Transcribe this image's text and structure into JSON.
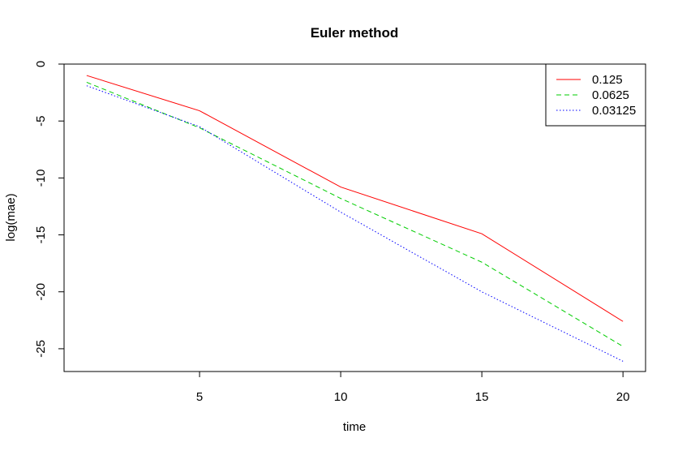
{
  "chart_data": {
    "type": "line",
    "title": "Euler method",
    "xlabel": "time",
    "ylabel": "log(mae)",
    "xlim": [
      0.2,
      20.8
    ],
    "ylim": [
      -27,
      0
    ],
    "x_ticks": [
      5,
      10,
      15,
      20
    ],
    "y_ticks": [
      0,
      -5,
      -10,
      -15,
      -20,
      -25
    ],
    "x": [
      1,
      5,
      10,
      15,
      20
    ],
    "grid": false,
    "legend_position": "top-right",
    "series": [
      {
        "name": "0.125",
        "color": "#ff0000",
        "dash": "solid",
        "values": [
          -1.0,
          -4.1,
          -10.8,
          -14.9,
          -22.6
        ]
      },
      {
        "name": "0.0625",
        "color": "#00cd00",
        "dash": "dashed",
        "values": [
          -1.6,
          -5.6,
          -11.8,
          -17.4,
          -24.8
        ]
      },
      {
        "name": "0.03125",
        "color": "#0000ff",
        "dash": "dotted",
        "values": [
          -1.9,
          -5.5,
          -13.0,
          -20.0,
          -26.1
        ]
      }
    ]
  }
}
